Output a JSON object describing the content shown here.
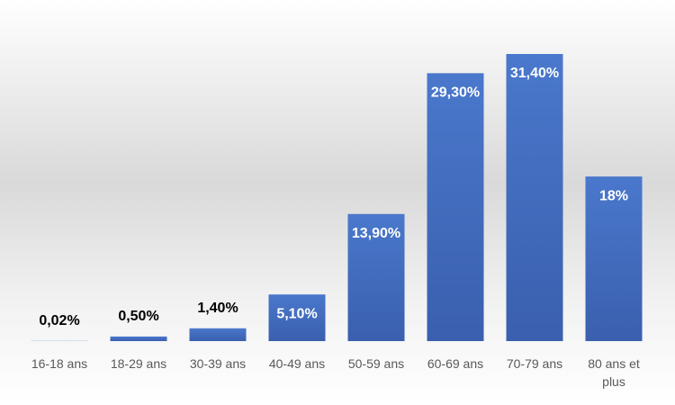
{
  "chart_data": {
    "type": "bar",
    "categories": [
      "16-18 ans",
      "18-29 ans",
      "30-39 ans",
      "40-49 ans",
      "50-59 ans",
      "60-69 ans",
      "70-79 ans",
      "80 ans et plus"
    ],
    "values": [
      0.02,
      0.5,
      1.4,
      5.1,
      13.9,
      29.3,
      31.4,
      18
    ],
    "value_labels": [
      "0,02%",
      "0,50%",
      "1,40%",
      "5,10%",
      "13,90%",
      "29,30%",
      "31,40%",
      "18%"
    ],
    "color": "#4472c4"
  }
}
